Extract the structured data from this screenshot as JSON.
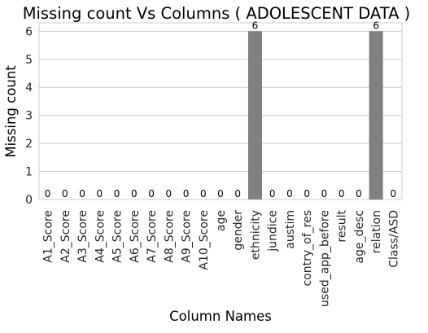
{
  "chart_data": {
    "type": "bar",
    "title": "Missing count Vs Columns ( ADOLESCENT DATA )",
    "xlabel": "Column Names",
    "ylabel": "Missing count",
    "categories": [
      "A1_Score",
      "A2_Score",
      "A3_Score",
      "A4_Score",
      "A5_Score",
      "A6_Score",
      "A7_Score",
      "A8_Score",
      "A9_Score",
      "A10_Score",
      "age",
      "gender",
      "ethnicity",
      "jundice",
      "austim",
      "contry_of_res",
      "used_app_before",
      "result",
      "age_desc",
      "relation",
      "Class/ASD"
    ],
    "values": [
      0,
      0,
      0,
      0,
      0,
      0,
      0,
      0,
      0,
      0,
      0,
      0,
      6,
      0,
      0,
      0,
      0,
      0,
      0,
      6,
      0
    ],
    "data_labels": [
      "0",
      "0",
      "0",
      "0",
      "0",
      "0",
      "0",
      "0",
      "0",
      "0",
      "0",
      "0",
      "6",
      "0",
      "0",
      "0",
      "0",
      "0",
      "0",
      "6",
      "0"
    ],
    "ylim": [
      0,
      6.3
    ],
    "yticks": [
      0,
      1,
      2,
      3,
      4,
      5,
      6
    ],
    "grid": "y",
    "bar_color": "#808080",
    "grid_color": "#cccccc",
    "axes_edge_color": "#cccccc",
    "text_color": "#262626"
  }
}
